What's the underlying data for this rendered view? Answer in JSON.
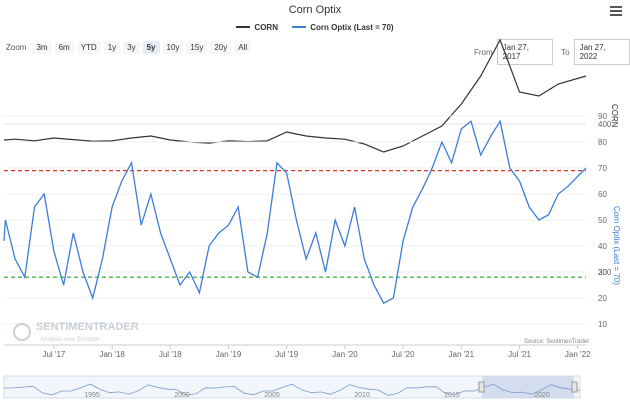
{
  "title": "Corn Optix",
  "legend": [
    {
      "name": "CORN",
      "color": "#333333"
    },
    {
      "name": "Corn Optix (Last = 70)",
      "color": "#3b7dd8"
    }
  ],
  "zoom": {
    "label": "Zoom",
    "buttons": [
      "3m",
      "6m",
      "YTD",
      "1y",
      "3y",
      "5y",
      "10y",
      "15y",
      "20y",
      "All"
    ],
    "active": "5y"
  },
  "range": {
    "from_label": "From",
    "from_value": "Jan 27, 2017",
    "to_label": "To",
    "to_value": "Jan 27, 2022"
  },
  "source": "Source: SentimenTrader",
  "watermark": {
    "name": "SENTIMENTRADER",
    "tagline": "Analysis over Emotion"
  },
  "colors": {
    "corn": "#333333",
    "optix": "#3b7dd8",
    "upper": "#e0302c",
    "lower": "#2ba02b"
  },
  "chart_data": [
    {
      "type": "line",
      "name": "CORN",
      "y_axis_title": "CORN",
      "y_ticks": [
        400
      ],
      "dates": [
        "2017-01-27",
        "2017-03",
        "2017-05",
        "2017-07",
        "2017-09",
        "2017-11",
        "2018-01",
        "2018-03",
        "2018-05",
        "2018-07",
        "2018-09",
        "2018-11",
        "2019-01",
        "2019-03",
        "2019-05",
        "2019-07",
        "2019-09",
        "2019-11",
        "2020-01",
        "2020-03",
        "2020-05",
        "2020-07",
        "2020-09",
        "2020-11",
        "2021-01",
        "2021-03",
        "2021-05",
        "2021-07",
        "2021-09",
        "2021-11",
        "2022-01-27"
      ],
      "values": [
        360,
        362,
        358,
        365,
        361,
        357,
        358,
        365,
        370,
        360,
        355,
        352,
        358,
        356,
        358,
        380,
        370,
        365,
        362,
        350,
        330,
        345,
        370,
        395,
        450,
        520,
        610,
        480,
        470,
        500,
        520
      ]
    },
    {
      "type": "line",
      "name": "Corn Optix (Last = 70)",
      "y_axis_title": "Corn Optix (Last = 70)",
      "y_ticks": [
        10,
        20,
        30,
        40,
        50,
        60,
        70,
        80,
        90
      ],
      "reference_lines": [
        {
          "value": 69,
          "color": "#e0302c",
          "style": "dashed"
        },
        {
          "value": 28,
          "color": "#2ba02b",
          "style": "dashed"
        }
      ],
      "x_tick_labels": [
        "Jul '17",
        "Jan '18",
        "Jul '18",
        "Jan '19",
        "Jul '19",
        "Jan '20",
        "Jul '20",
        "Jan '21",
        "Jul '21",
        "Jan '22"
      ],
      "dates": [
        "2017-01-27",
        "2017-02",
        "2017-03",
        "2017-04",
        "2017-05",
        "2017-06",
        "2017-07",
        "2017-08",
        "2017-09",
        "2017-10",
        "2017-11",
        "2017-12",
        "2018-01",
        "2018-02",
        "2018-03",
        "2018-04",
        "2018-05",
        "2018-06",
        "2018-07",
        "2018-08",
        "2018-09",
        "2018-10",
        "2018-11",
        "2018-12",
        "2019-01",
        "2019-02",
        "2019-03",
        "2019-04",
        "2019-05",
        "2019-06",
        "2019-07",
        "2019-08",
        "2019-09",
        "2019-10",
        "2019-11",
        "2019-12",
        "2020-01",
        "2020-02",
        "2020-03",
        "2020-04",
        "2020-05",
        "2020-06",
        "2020-07",
        "2020-08",
        "2020-09",
        "2020-10",
        "2020-11",
        "2020-12",
        "2021-01",
        "2021-02",
        "2021-03",
        "2021-04",
        "2021-05",
        "2021-06",
        "2021-07",
        "2021-08",
        "2021-09",
        "2021-10",
        "2021-11",
        "2021-12",
        "2022-01-27"
      ],
      "values": [
        42,
        50,
        35,
        28,
        55,
        60,
        38,
        25,
        45,
        30,
        20,
        35,
        55,
        65,
        72,
        48,
        60,
        45,
        35,
        25,
        30,
        22,
        40,
        45,
        48,
        55,
        30,
        28,
        45,
        72,
        68,
        50,
        35,
        45,
        30,
        50,
        40,
        55,
        35,
        25,
        18,
        20,
        42,
        55,
        62,
        70,
        80,
        72,
        85,
        88,
        75,
        82,
        88,
        70,
        65,
        55,
        50,
        52,
        60,
        63,
        70
      ]
    }
  ],
  "navigator": {
    "labels": [
      "1995",
      "2000",
      "2005",
      "2010",
      "2015",
      "2020"
    ]
  }
}
